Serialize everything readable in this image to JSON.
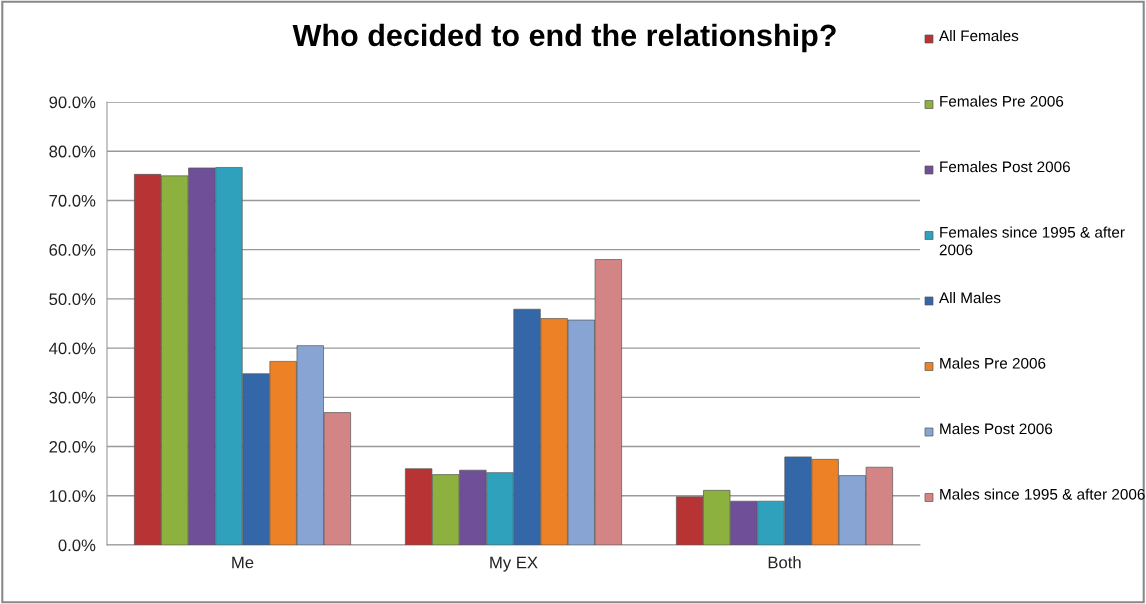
{
  "chart_data": {
    "type": "bar",
    "title": "Who decided to end the relationship?",
    "categories": [
      "Me",
      "My EX",
      "Both"
    ],
    "series": [
      {
        "name": "All Females",
        "color": "#b83434",
        "values": [
          75.3,
          15.5,
          9.8
        ]
      },
      {
        "name": "Females Pre 2006",
        "color": "#8db13f",
        "values": [
          75.0,
          14.3,
          11.1
        ]
      },
      {
        "name": "Females Post 2006",
        "color": "#6f4f97",
        "values": [
          76.6,
          15.2,
          8.9
        ]
      },
      {
        "name": "Females since 1995 & after 2006",
        "color": "#2fa1bd",
        "values": [
          76.7,
          14.7,
          8.9
        ]
      },
      {
        "name": "All Males",
        "color": "#3367a8",
        "values": [
          34.8,
          47.9,
          17.9
        ]
      },
      {
        "name": "Males Pre 2006",
        "color": "#ec8126",
        "values": [
          37.3,
          46.0,
          17.4
        ]
      },
      {
        "name": "Males Post 2006",
        "color": "#87a4d2",
        "values": [
          40.5,
          45.7,
          14.1
        ]
      },
      {
        "name": "Males since 1995 & after 2006",
        "color": "#d38585",
        "values": [
          26.9,
          58.0,
          15.8
        ]
      }
    ],
    "ylim": [
      0,
      90
    ],
    "yticks": [
      {
        "value": 0,
        "label": "0.0%"
      },
      {
        "value": 10,
        "label": "10.0%"
      },
      {
        "value": 20,
        "label": "20.0%"
      },
      {
        "value": 30,
        "label": "30.0%"
      },
      {
        "value": 40,
        "label": "40.0%"
      },
      {
        "value": 50,
        "label": "50.0%"
      },
      {
        "value": 60,
        "label": "60.0%"
      },
      {
        "value": 70,
        "label": "70.0%"
      },
      {
        "value": 80,
        "label": "80.0%"
      },
      {
        "value": 90,
        "label": "90.0%"
      }
    ],
    "grid": "y",
    "legend": "right"
  }
}
